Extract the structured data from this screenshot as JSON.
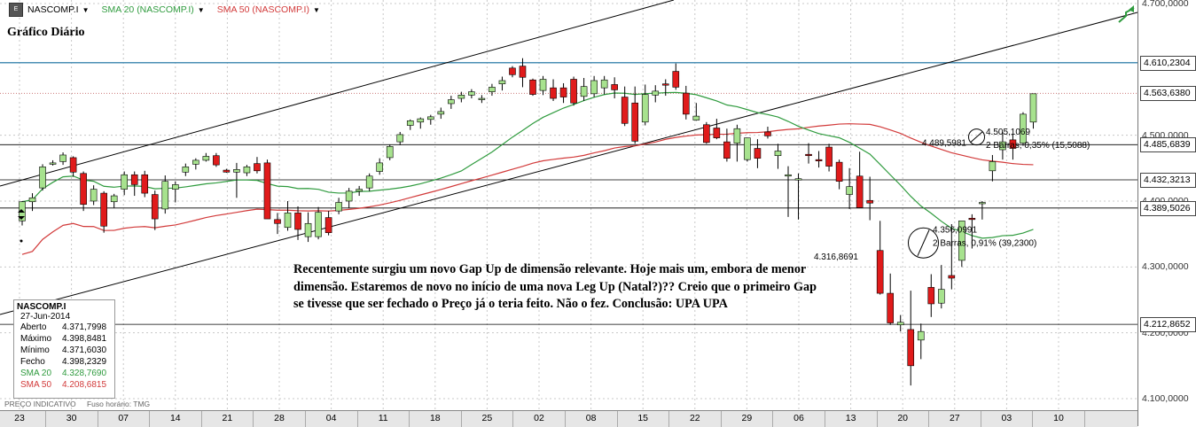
{
  "legend": {
    "icon": "chart-app-icon",
    "symbol": "NASCOMP.I",
    "sma20": "SMA 20 (NASCOMP.I)",
    "sma50": "SMA 50 (NASCOMP.I)"
  },
  "title": "Gráfico Diário",
  "annotation": "Recentemente surgiu um novo Gap Up de dimensão relevante. Hoje mais um, embora de menor dimensão. Estaremos de novo no início de uma nova Leg Up (Natal?)?? Creio que o primeiro Gap se tivesse que ser fechado o Preço já o teria feito. Não o fez. Conclusão: UPA UPA",
  "info_box": {
    "symbol": "NASCOMP.I",
    "date": "27-Jun-2014",
    "rows": [
      {
        "label": "Aberto",
        "value": "4.371,7998"
      },
      {
        "label": "Máximo",
        "value": "4.398,8481"
      },
      {
        "label": "Mínimo",
        "value": "4.371,6030"
      },
      {
        "label": "Fecho",
        "value": "4.398,2329"
      },
      {
        "label": "SMA 20",
        "value": "4.328,7690"
      },
      {
        "label": "SMA 50",
        "value": "4.208,6815"
      }
    ]
  },
  "bottom_bar": {
    "left": "PREÇO INDICATIVO",
    "right": "Fuso horário: TMG"
  },
  "colors": {
    "up": "#a7e28e",
    "down": "#e01b1b",
    "sma20": "#2f9b3e",
    "sma50": "#d23a3a",
    "trend": "#000000",
    "resistance": "#4a8fb5"
  },
  "chart_data": {
    "type": "candlestick",
    "title": "Gráfico Diário",
    "y_ticks": [
      "4.700,0000",
      "4.500,0000",
      "4.400,0000",
      "4.300,0000",
      "4.200,0000",
      "4.100,0000"
    ],
    "x_ticks": [
      "23",
      "30",
      "07",
      "14",
      "21",
      "28",
      "04",
      "11",
      "18",
      "25",
      "02",
      "08",
      "15",
      "22",
      "29",
      "06",
      "13",
      "20",
      "27",
      "03",
      "10"
    ],
    "ylim": [
      4080,
      4710
    ],
    "price_labels": [
      {
        "text": "4.610,2304",
        "value": 4610.23,
        "style": "blue"
      },
      {
        "text": "4.563,6380",
        "value": 4563.64,
        "style": "dotted"
      },
      {
        "text": "4.485,6839",
        "value": 4485.68,
        "style": "line"
      },
      {
        "text": "4.432,3213",
        "value": 4432.32,
        "style": "line"
      },
      {
        "text": "4.389,5026",
        "value": 4389.5,
        "style": "line"
      },
      {
        "text": "4.212,8652",
        "value": 4212.87,
        "style": "line"
      }
    ],
    "measurements": [
      {
        "from": "4.316,8691",
        "to": "4.356,0991",
        "note": "2 Barras, 0,91% (39,2300)"
      },
      {
        "from": "4.489,5981",
        "to": "4.505,1069",
        "note": "2 Barras, 0,35% (15,5088)"
      }
    ],
    "candles": [
      [
        4370,
        4400,
        4363,
        4399
      ],
      [
        4399,
        4412,
        4385,
        4405
      ],
      [
        4420,
        4456,
        4416,
        4452
      ],
      [
        4458,
        4462,
        4454,
        4458
      ],
      [
        4460,
        4474,
        4455,
        4470
      ],
      [
        4466,
        4468,
        4437,
        4444
      ],
      [
        4442,
        4445,
        4385,
        4395
      ],
      [
        4400,
        4424,
        4394,
        4418
      ],
      [
        4412,
        4415,
        4352,
        4362
      ],
      [
        4399,
        4411,
        4390,
        4408
      ],
      [
        4418,
        4445,
        4409,
        4440
      ],
      [
        4440,
        4445,
        4408,
        4425
      ],
      [
        4440,
        4446,
        4406,
        4412
      ],
      [
        4410,
        4416,
        4356,
        4373
      ],
      [
        4388,
        4439,
        4381,
        4430
      ],
      [
        4418,
        4430,
        4398,
        4425
      ],
      [
        4444,
        4457,
        4438,
        4452
      ],
      [
        4456,
        4465,
        4448,
        4462
      ],
      [
        4462,
        4473,
        4460,
        4468
      ],
      [
        4469,
        4473,
        4452,
        4455
      ],
      [
        4447,
        4449,
        4443,
        4444
      ],
      [
        4444,
        4458,
        4405,
        4448
      ],
      [
        4443,
        4455,
        4438,
        4452
      ],
      [
        4457,
        4467,
        4442,
        4446
      ],
      [
        4458,
        4463,
        4376,
        4373
      ],
      [
        4372,
        4382,
        4350,
        4366
      ],
      [
        4360,
        4400,
        4355,
        4382
      ],
      [
        4382,
        4392,
        4341,
        4357
      ],
      [
        4346,
        4383,
        4338,
        4366
      ],
      [
        4346,
        4391,
        4342,
        4383
      ],
      [
        4375,
        4385,
        4348,
        4352
      ],
      [
        4385,
        4405,
        4380,
        4398
      ],
      [
        4400,
        4420,
        4390,
        4415
      ],
      [
        4415,
        4423,
        4408,
        4418
      ],
      [
        4420,
        4442,
        4415,
        4438
      ],
      [
        4445,
        4465,
        4440,
        4458
      ],
      [
        4466,
        4486,
        4462,
        4483
      ],
      [
        4490,
        4505,
        4485,
        4501
      ],
      [
        4515,
        4524,
        4508,
        4522
      ],
      [
        4520,
        4527,
        4510,
        4525
      ],
      [
        4524,
        4531,
        4516,
        4528
      ],
      [
        4532,
        4542,
        4525,
        4536
      ],
      [
        4548,
        4560,
        4540,
        4554
      ],
      [
        4556,
        4566,
        4550,
        4561
      ],
      [
        4561,
        4570,
        4556,
        4566
      ],
      [
        4555,
        4561,
        4549,
        4556
      ],
      [
        4566,
        4578,
        4560,
        4573
      ],
      [
        4578,
        4589,
        4568,
        4583
      ],
      [
        4602,
        4605,
        4588,
        4592
      ],
      [
        4605,
        4617,
        4573,
        4588
      ],
      [
        4584,
        4586,
        4560,
        4562
      ],
      [
        4568,
        4590,
        4561,
        4585
      ],
      [
        4572,
        4585,
        4552,
        4556
      ],
      [
        4572,
        4579,
        4549,
        4558
      ],
      [
        4585,
        4589,
        4545,
        4549
      ],
      [
        4559,
        4587,
        4552,
        4574
      ],
      [
        4563,
        4590,
        4558,
        4583
      ],
      [
        4572,
        4590,
        4562,
        4584
      ],
      [
        4577,
        4588,
        4556,
        4569
      ],
      [
        4558,
        4574,
        4514,
        4518
      ],
      [
        4549,
        4574,
        4487,
        4491
      ],
      [
        4520,
        4577,
        4515,
        4562
      ],
      [
        4561,
        4576,
        4550,
        4567
      ],
      [
        4578,
        4585,
        4560,
        4577
      ],
      [
        4597,
        4609,
        4569,
        4573
      ],
      [
        4564,
        4575,
        4524,
        4532
      ],
      [
        4523,
        4549,
        4522,
        4529
      ],
      [
        4516,
        4520,
        4487,
        4489
      ],
      [
        4511,
        4525,
        4494,
        4496
      ],
      [
        4490,
        4510,
        4460,
        4465
      ],
      [
        4488,
        4516,
        4460,
        4510
      ],
      [
        4463,
        4494,
        4460,
        4496
      ],
      [
        4480,
        4494,
        4450,
        4465
      ],
      [
        4505,
        4513,
        4495,
        4499
      ],
      [
        4469,
        4487,
        4449,
        4476
      ],
      [
        4439,
        4453,
        4376,
        4440
      ],
      [
        4433,
        4442,
        4372,
        4434
      ],
      [
        4471,
        4488,
        4457,
        4469
      ],
      [
        4463,
        4476,
        4451,
        4462
      ],
      [
        4482,
        4487,
        4445,
        4453
      ],
      [
        4459,
        4463,
        4418,
        4430
      ],
      [
        4410,
        4450,
        4388,
        4422
      ],
      [
        4438,
        4475,
        4390,
        4390
      ],
      [
        4401,
        4437,
        4371,
        4397
      ],
      [
        4325,
        4370,
        4258,
        4260
      ],
      [
        4260,
        4290,
        4212,
        4215
      ],
      [
        4212,
        4227,
        4202,
        4216
      ],
      [
        4205,
        4264,
        4120,
        4150
      ],
      [
        4189,
        4214,
        4160,
        4202
      ],
      [
        4269,
        4289,
        4224,
        4244
      ],
      [
        4245,
        4303,
        4237,
        4266
      ],
      [
        4287,
        4365,
        4266,
        4283
      ],
      [
        4310,
        4369,
        4300,
        4370
      ],
      [
        4374,
        4380,
        4328,
        4372
      ],
      [
        4398,
        4400,
        4372,
        4398
      ],
      [
        4446,
        4470,
        4430,
        4460
      ],
      [
        4478,
        4505,
        4463,
        4490
      ],
      [
        4493,
        4502,
        4463,
        4480
      ],
      [
        4488,
        4535,
        4484,
        4532
      ],
      [
        4520,
        4563,
        4510,
        4563
      ]
    ]
  }
}
